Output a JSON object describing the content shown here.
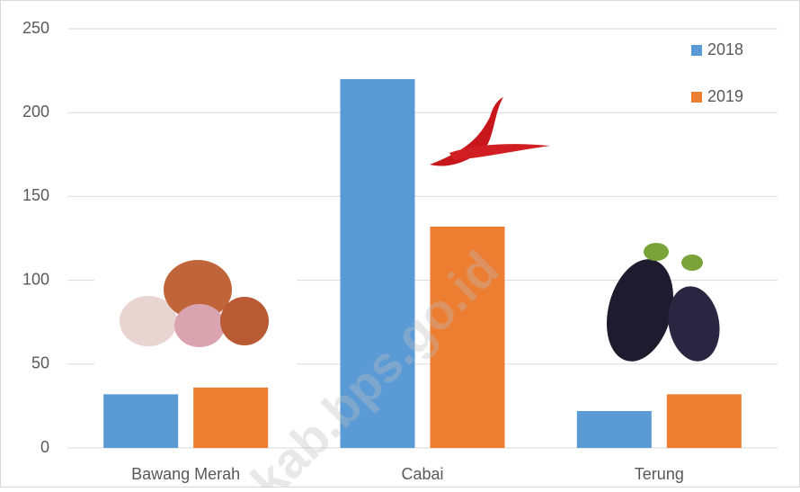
{
  "chart_data": {
    "type": "bar",
    "categories": [
      "Bawang Merah",
      "Cabai",
      "Terung"
    ],
    "series": [
      {
        "name": "2018",
        "color": "#5b9bd5",
        "values": [
          32,
          220,
          22
        ]
      },
      {
        "name": "2019",
        "color": "#ed7d31",
        "values": [
          36,
          132,
          32
        ]
      }
    ],
    "ylim": [
      0,
      250
    ],
    "yticks": [
      0,
      50,
      100,
      150,
      200,
      250
    ],
    "grid": true,
    "legend": "top-right",
    "watermark": "kab.bps.go.id"
  }
}
